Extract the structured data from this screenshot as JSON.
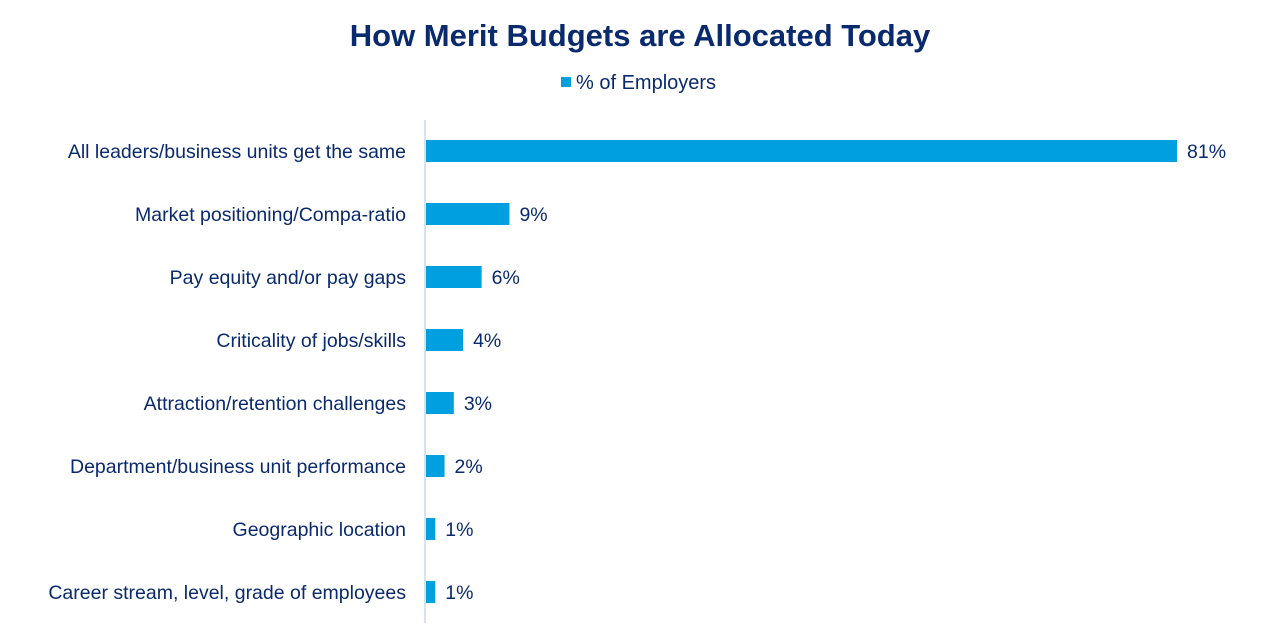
{
  "chart_data": {
    "type": "bar",
    "orientation": "horizontal",
    "title": "How Merit Budgets are Allocated Today",
    "legend": {
      "position": "top",
      "entries": [
        "% of Employers"
      ]
    },
    "categories": [
      "All leaders/business units get the same",
      "Market positioning/Compa-ratio",
      "Pay equity and/or pay gaps",
      "Criticality of jobs/skills",
      "Attraction/retention challenges",
      "Department/business unit performance",
      "Geographic location",
      "Career stream, level, grade of employees"
    ],
    "series": [
      {
        "name": "% of Employers",
        "values": [
          81,
          9,
          6,
          4,
          3,
          2,
          1,
          1
        ],
        "color": "#009fdf"
      }
    ],
    "data_labels": [
      "81%",
      "9%",
      "6%",
      "4%",
      "3%",
      "2%",
      "1%",
      "1%"
    ],
    "xlim": [
      0,
      81
    ],
    "grid": false,
    "colors": {
      "text": "#0a2a6e",
      "bar": "#009fdf",
      "axis": "#c5d9f1"
    }
  }
}
